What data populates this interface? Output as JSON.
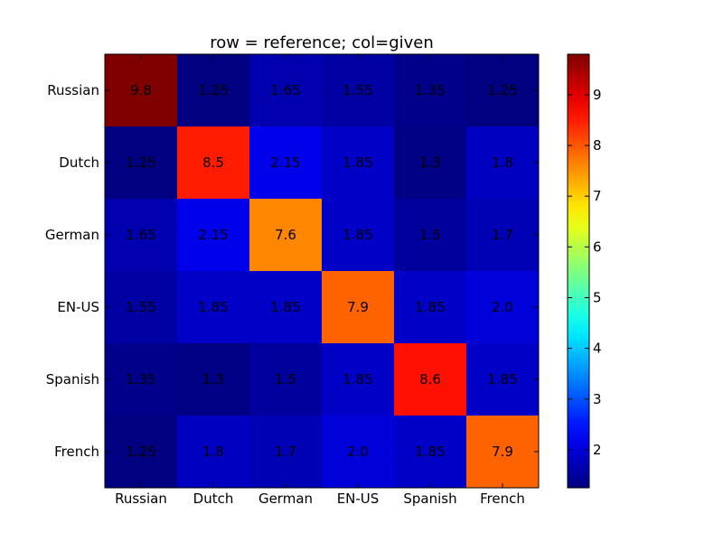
{
  "chart_data": {
    "type": "heatmap",
    "title": "row = reference; col=given",
    "rows": [
      "Russian",
      "Dutch",
      "German",
      "EN-US",
      "Spanish",
      "French"
    ],
    "cols": [
      "Russian",
      "Dutch",
      "German",
      "EN-US",
      "Spanish",
      "French"
    ],
    "values": [
      [
        9.8,
        1.25,
        1.65,
        1.55,
        1.35,
        1.25
      ],
      [
        1.25,
        8.5,
        2.15,
        1.85,
        1.3,
        1.8
      ],
      [
        1.65,
        2.15,
        7.6,
        1.85,
        1.5,
        1.7
      ],
      [
        1.55,
        1.85,
        1.85,
        7.9,
        1.85,
        2.0
      ],
      [
        1.35,
        1.3,
        1.5,
        1.85,
        8.6,
        1.85
      ],
      [
        1.25,
        1.8,
        1.7,
        2.0,
        1.85,
        7.9
      ]
    ],
    "cell_labels": [
      [
        "9.8",
        "1.25",
        "1.65",
        "1.55",
        "1.35",
        "1.25"
      ],
      [
        "1.25",
        "8.5",
        "2.15",
        "1.85",
        "1.3",
        "1.8"
      ],
      [
        "1.65",
        "2.15",
        "7.6",
        "1.85",
        "1.5",
        "1.7"
      ],
      [
        "1.55",
        "1.85",
        "1.85",
        "7.9",
        "1.85",
        "2.0"
      ],
      [
        "1.35",
        "1.3",
        "1.5",
        "1.85",
        "8.6",
        "1.85"
      ],
      [
        "1.25",
        "1.8",
        "1.7",
        "2.0",
        "1.85",
        "7.9"
      ]
    ],
    "colormap": "jet",
    "vmin": 1.25,
    "vmax": 9.8,
    "colorbar_ticks": [
      "2",
      "3",
      "4",
      "5",
      "6",
      "7",
      "8",
      "9"
    ]
  }
}
